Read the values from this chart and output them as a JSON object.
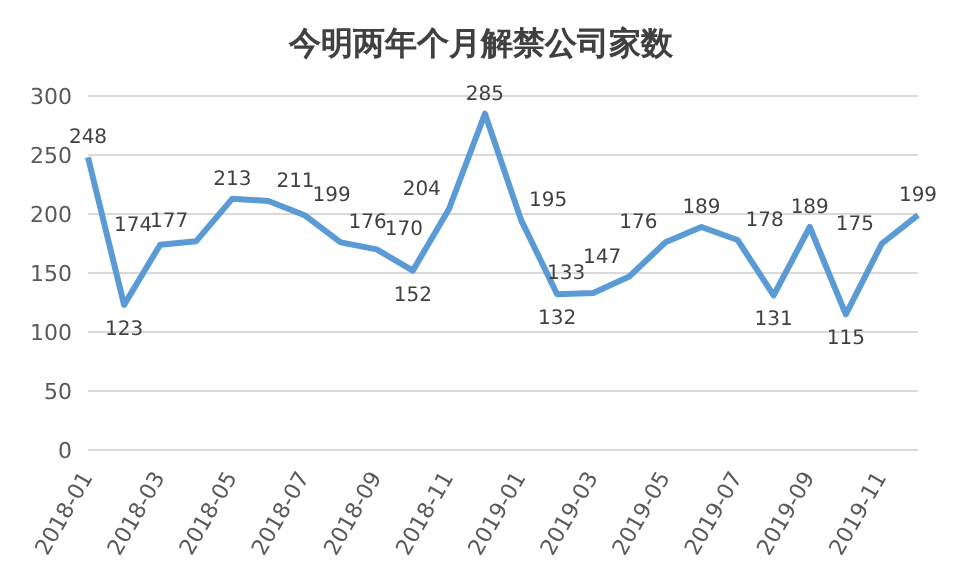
{
  "chart_data": {
    "type": "line",
    "title": "今明两年个月解禁公司家数",
    "categories": [
      "2018-01",
      null,
      "2018-03",
      null,
      "2018-05",
      null,
      "2018-07",
      null,
      "2018-09",
      null,
      "2018-11",
      null,
      "2019-01",
      null,
      "2019-03",
      null,
      "2019-05",
      null,
      "2019-07",
      null,
      "2019-09",
      null,
      "2019-11",
      null
    ],
    "series": [
      {
        "color": "#5b9bd5",
        "values": [
          248,
          123,
          174,
          177,
          213,
          211,
          199,
          176,
          170,
          152,
          204,
          285,
          195,
          132,
          133,
          147,
          176,
          189,
          178,
          131,
          189,
          115,
          175,
          199
        ]
      }
    ],
    "ylim": [
      0,
      300
    ],
    "yticks": [
      0,
      50,
      100,
      150,
      200,
      250,
      300
    ],
    "grid": "y",
    "marker": "none",
    "line_style": "solid",
    "data_labels": true
  }
}
